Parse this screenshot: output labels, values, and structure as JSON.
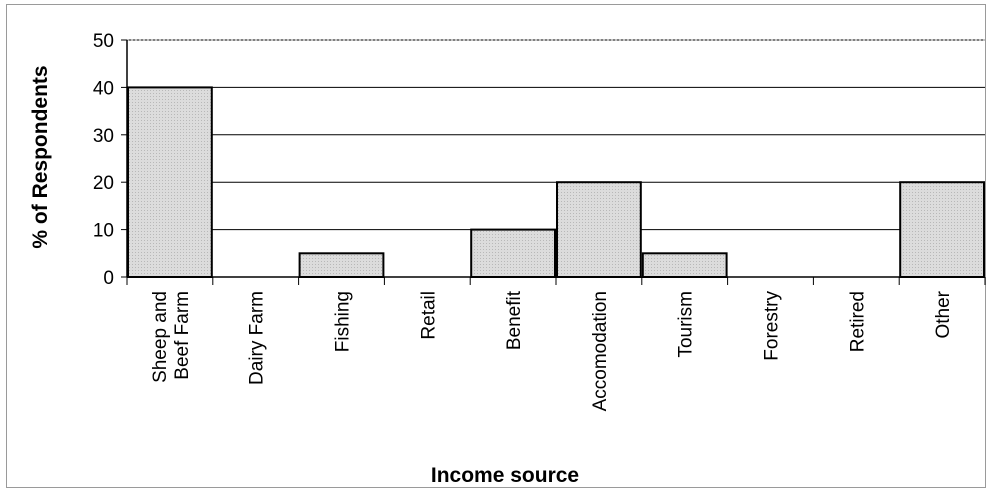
{
  "chart_data": {
    "type": "bar",
    "categories": [
      [
        "Sheep and",
        "Beef Farm"
      ],
      [
        "Dairy Farm"
      ],
      [
        "Fishing"
      ],
      [
        "Retail"
      ],
      [
        "Benefit"
      ],
      [
        "Accomodation"
      ],
      [
        "Tourism"
      ],
      [
        "Forestry"
      ],
      [
        "Retired"
      ],
      [
        "Other"
      ]
    ],
    "values": [
      40,
      0,
      5,
      0,
      10,
      20,
      5,
      0,
      0,
      20
    ],
    "xlabel": "Income source",
    "ylabel": "% of Respondents",
    "ylim": [
      0,
      50
    ],
    "yticks": [
      0,
      10,
      20,
      30,
      40,
      50
    ],
    "grid": true,
    "legend": "none",
    "bar_fill": "#d9d9d9",
    "bar_stroke": "#000000",
    "grid_color": "#000000"
  }
}
